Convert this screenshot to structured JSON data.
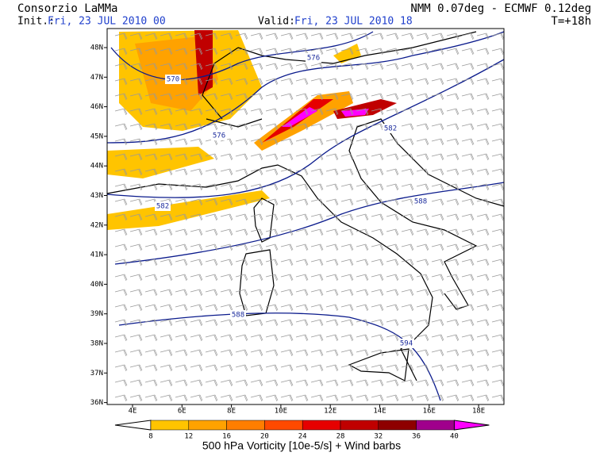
{
  "header": {
    "title": "Consorzio LaMMa",
    "init_label": "Init.:",
    "init_date": "Fri, 23 JUL 2010  00",
    "valid_label": "Valid:",
    "valid_date": "Fri, 23 JUL 2010  18",
    "model": "NMM 0.07deg - ECMWF 0.12deg",
    "lead_time": "T=+18h"
  },
  "map": {
    "lat_labels": [
      "48N",
      "47N",
      "46N",
      "45N",
      "44N",
      "43N",
      "42N",
      "41N",
      "40N",
      "39N",
      "38N",
      "37N",
      "36N"
    ],
    "lon_labels": [
      "4E",
      "6E",
      "8E",
      "10E",
      "12E",
      "14E",
      "16E",
      "18E"
    ],
    "contour_labels": [
      "570",
      "576",
      "576",
      "582",
      "582",
      "588",
      "588",
      "594"
    ]
  },
  "colorbar": {
    "labels": [
      "8",
      "12",
      "16",
      "20",
      "24",
      "28",
      "32",
      "36",
      "40"
    ],
    "colors": [
      "#ffc400",
      "#ffa200",
      "#ff7e00",
      "#ff4a00",
      "#e60000",
      "#c00000",
      "#8e0000",
      "#a0008c",
      "#ff00ff"
    ],
    "caption": "500 hPa Vorticity [10e-5/s] + Wind barbs"
  }
}
